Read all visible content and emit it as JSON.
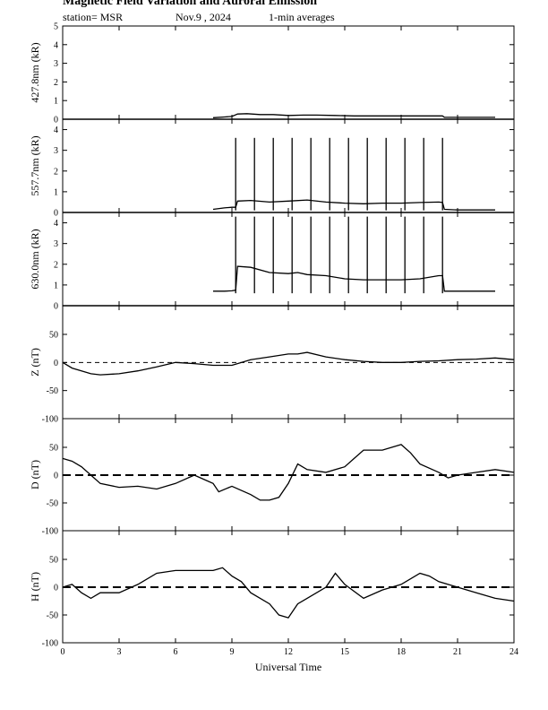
{
  "header": {
    "title": "Magnetic Field Variation and Auroral Emission",
    "station": "station= MSR",
    "date": "Nov.9  , 2024",
    "averages": "1-min averages"
  },
  "chart_data": {
    "type": "line",
    "xlabel": "Universal Time",
    "xlim": [
      0,
      24
    ],
    "xticks": [
      0,
      3,
      6,
      9,
      12,
      15,
      18,
      21,
      24
    ],
    "panels": [
      {
        "id": "p4278",
        "ylabel": "427.8nm (kR)",
        "ylim": [
          0,
          5
        ],
        "yticks": [
          0,
          1,
          2,
          3,
          4,
          5
        ],
        "x": [
          8.0,
          8.6,
          9.0,
          9.3,
          9.8,
          10.5,
          11.2,
          12.0,
          12.8,
          13.5,
          14.5,
          15.5,
          16.5,
          17.5,
          18.5,
          19.5,
          20.2,
          20.3,
          21.0,
          22.0,
          23.0
        ],
        "y": [
          0.08,
          0.12,
          0.15,
          0.28,
          0.3,
          0.25,
          0.25,
          0.2,
          0.22,
          0.22,
          0.2,
          0.18,
          0.18,
          0.18,
          0.18,
          0.18,
          0.18,
          0.1,
          0.1,
          0.1,
          0.1
        ],
        "spikes": [],
        "zero_line": "none"
      },
      {
        "id": "p5577",
        "ylabel": "557.7nm (kR)",
        "ylim": [
          0,
          4.5
        ],
        "yticks": [
          0,
          1,
          2,
          3,
          4
        ],
        "x": [
          8.0,
          8.6,
          9.0,
          9.2,
          9.3,
          10.0,
          11.0,
          12.0,
          13.0,
          14.0,
          15.0,
          16.0,
          17.0,
          18.0,
          19.0,
          20.0,
          20.2,
          20.3,
          21.0,
          22.0,
          23.0
        ],
        "y": [
          0.15,
          0.22,
          0.25,
          0.25,
          0.55,
          0.58,
          0.5,
          0.55,
          0.6,
          0.5,
          0.45,
          0.42,
          0.45,
          0.45,
          0.48,
          0.5,
          0.48,
          0.15,
          0.12,
          0.12,
          0.12
        ],
        "spikes": [
          9.2,
          10.2,
          11.2,
          12.2,
          13.2,
          14.2,
          15.2,
          16.2,
          17.2,
          18.2,
          19.2,
          20.2
        ],
        "spike_top": 3.6,
        "zero_line": "none"
      },
      {
        "id": "p6300",
        "ylabel": "630.0nm (kR)",
        "ylim": [
          0,
          4.5
        ],
        "yticks": [
          0,
          1,
          2,
          3,
          4
        ],
        "x": [
          8.0,
          8.6,
          9.0,
          9.2,
          9.3,
          10.0,
          11.0,
          12.0,
          12.5,
          13.0,
          14.0,
          15.0,
          16.0,
          17.0,
          18.0,
          19.0,
          20.0,
          20.2,
          20.3,
          21.0,
          22.0,
          23.0
        ],
        "y": [
          0.7,
          0.7,
          0.72,
          0.75,
          1.9,
          1.85,
          1.6,
          1.55,
          1.6,
          1.5,
          1.45,
          1.3,
          1.25,
          1.25,
          1.25,
          1.3,
          1.45,
          1.45,
          0.7,
          0.7,
          0.7,
          0.7
        ],
        "spikes": [
          9.2,
          10.2,
          11.2,
          12.2,
          13.2,
          14.2,
          15.2,
          16.2,
          17.2,
          18.2,
          19.2,
          20.2
        ],
        "spike_top": 4.3,
        "spike_bottom": 0.6,
        "zero_line": "none"
      },
      {
        "id": "pZ",
        "ylabel": "Z (nT)",
        "ylim": [
          -100,
          100
        ],
        "yticks": [
          -100,
          -50,
          0,
          50
        ],
        "x": [
          0,
          0.5,
          1.0,
          1.5,
          2.0,
          3.0,
          4.0,
          5.0,
          6.0,
          7.0,
          8.0,
          9.0,
          10.0,
          11.0,
          12.0,
          12.5,
          13.0,
          14.0,
          15.0,
          16.0,
          17.0,
          18.0,
          19.0,
          20.0,
          21.0,
          22.0,
          23.0,
          24.0
        ],
        "y": [
          0,
          -10,
          -15,
          -20,
          -22,
          -20,
          -15,
          -8,
          0,
          -2,
          -5,
          -5,
          5,
          10,
          15,
          15,
          18,
          10,
          5,
          2,
          0,
          0,
          2,
          3,
          5,
          6,
          8,
          5
        ],
        "zero_line": "thin-dashed"
      },
      {
        "id": "pD",
        "ylabel": "D (nT)",
        "ylim": [
          -100,
          100
        ],
        "yticks": [
          -100,
          -50,
          0,
          50
        ],
        "x": [
          0,
          0.5,
          1.0,
          1.5,
          2.0,
          3.0,
          4.0,
          5.0,
          6.0,
          7.0,
          8.0,
          8.3,
          9.0,
          10.0,
          10.5,
          11.0,
          11.5,
          12.0,
          12.5,
          13.0,
          14.0,
          15.0,
          15.5,
          16.0,
          17.0,
          18.0,
          18.5,
          19.0,
          20.0,
          20.5,
          21.0,
          22.0,
          23.0,
          24.0
        ],
        "y": [
          30,
          25,
          15,
          0,
          -15,
          -22,
          -20,
          -25,
          -15,
          0,
          -15,
          -30,
          -20,
          -35,
          -45,
          -45,
          -40,
          -15,
          20,
          10,
          5,
          15,
          30,
          45,
          45,
          55,
          40,
          20,
          5,
          -5,
          0,
          5,
          10,
          5
        ],
        "zero_line": "thick-dashed"
      },
      {
        "id": "pH",
        "ylabel": "H (nT)",
        "ylim": [
          -100,
          100
        ],
        "yticks": [
          -100,
          -50,
          0,
          50
        ],
        "x": [
          0,
          0.5,
          1.0,
          1.5,
          2.0,
          3.0,
          4.0,
          5.0,
          6.0,
          7.0,
          8.0,
          8.5,
          9.0,
          9.5,
          10.0,
          11.0,
          11.5,
          12.0,
          12.5,
          13.0,
          14.0,
          14.5,
          15.0,
          16.0,
          17.0,
          18.0,
          19.0,
          19.5,
          20.0,
          21.0,
          22.0,
          23.0,
          24.0
        ],
        "y": [
          0,
          5,
          -10,
          -20,
          -10,
          -10,
          5,
          25,
          30,
          30,
          30,
          35,
          20,
          10,
          -10,
          -30,
          -50,
          -55,
          -30,
          -20,
          0,
          25,
          5,
          -20,
          -5,
          5,
          25,
          20,
          10,
          0,
          -10,
          -20,
          -25
        ],
        "zero_line": "thick-dashed"
      }
    ]
  }
}
